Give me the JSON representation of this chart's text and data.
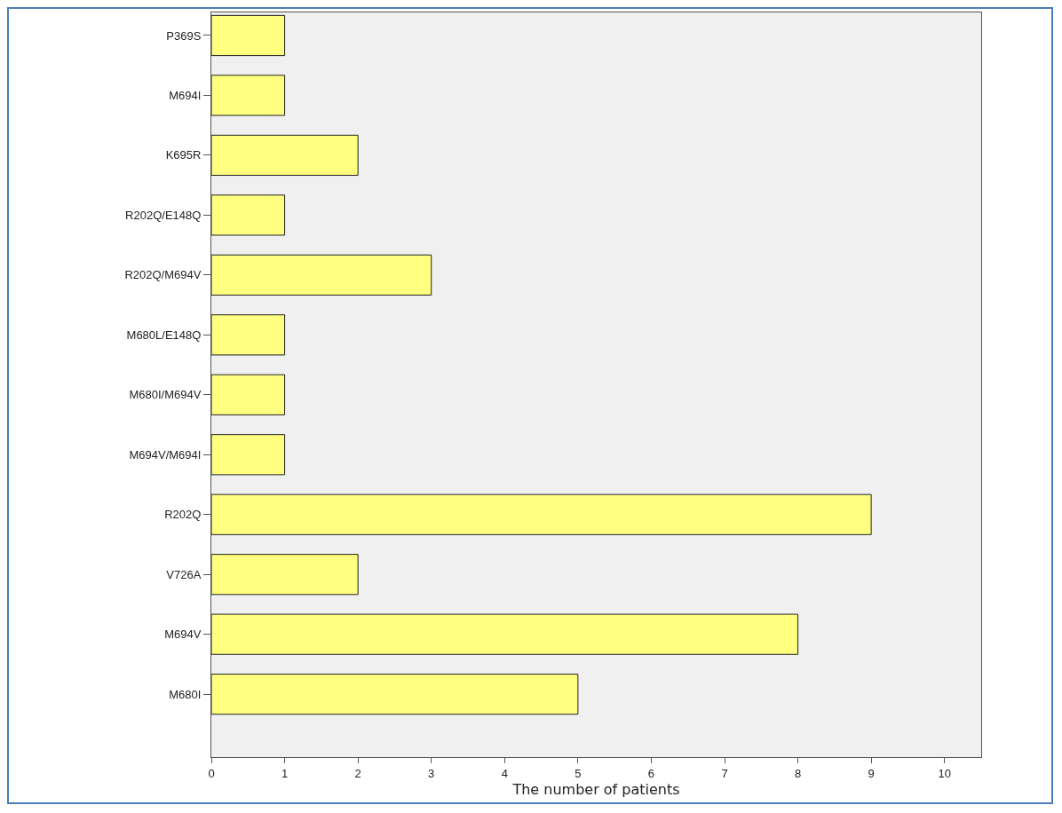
{
  "chart_data": {
    "type": "bar",
    "orientation": "horizontal",
    "xlabel": "The number of patients",
    "categories": [
      "P369S",
      "M694I",
      "K695R",
      "R202Q/E148Q",
      "R202Q/M694V",
      "M680L/E148Q",
      "M680I/M694V",
      "M694V/M694I",
      "R202Q",
      "V726A",
      "M694V",
      "M680I"
    ],
    "values": [
      1,
      1,
      2,
      1,
      3,
      1,
      1,
      1,
      9,
      2,
      8,
      5
    ],
    "color": "#ffff80",
    "xlim": [
      0,
      10.5
    ],
    "xticks": [
      0,
      1,
      2,
      3,
      4,
      5,
      6,
      7,
      8,
      9,
      10
    ],
    "grid": false
  }
}
